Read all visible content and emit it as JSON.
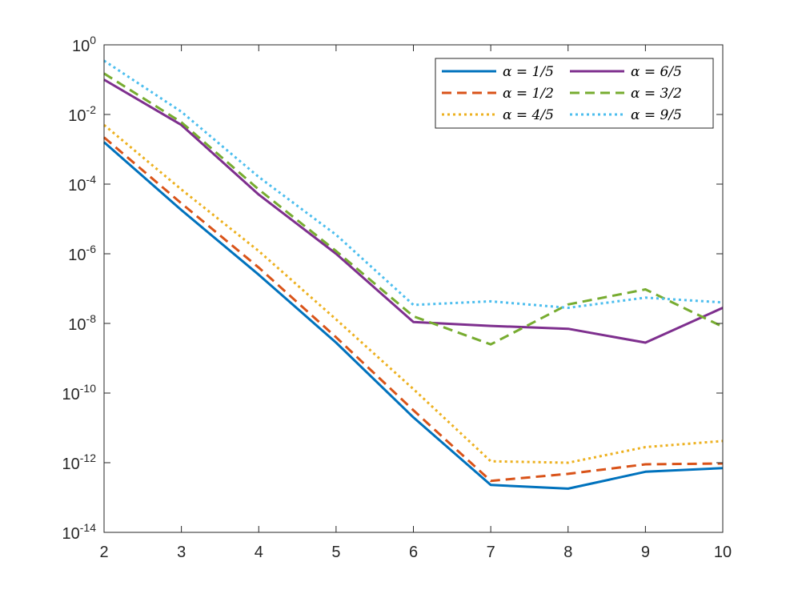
{
  "chart_data": {
    "type": "line",
    "title": "",
    "xlabel": "",
    "ylabel": "",
    "x": [
      2,
      3,
      4,
      5,
      6,
      7,
      8,
      9,
      10
    ],
    "xlim": [
      2,
      10
    ],
    "ylim": [
      1e-14,
      1
    ],
    "yscale": "log",
    "xticks": [
      "2",
      "3",
      "4",
      "5",
      "6",
      "7",
      "8",
      "9",
      "10"
    ],
    "yticks": [
      {
        "base": "10",
        "exp": "0"
      },
      {
        "base": "10",
        "exp": "-2"
      },
      {
        "base": "10",
        "exp": "-4"
      },
      {
        "base": "10",
        "exp": "-6"
      },
      {
        "base": "10",
        "exp": "-8"
      },
      {
        "base": "10",
        "exp": "-10"
      },
      {
        "base": "10",
        "exp": "-12"
      },
      {
        "base": "10",
        "exp": "-14"
      }
    ],
    "grid": false,
    "legend_position": "top-right",
    "series": [
      {
        "name": "α = 1/5",
        "color": "#0072BD",
        "style": "solid",
        "values": [
          0.0016,
          1.8e-05,
          2.5e-07,
          2.8e-09,
          2e-11,
          2.3e-13,
          1.8e-13,
          5.5e-13,
          7e-13
        ]
      },
      {
        "name": "α = 1/2",
        "color": "#D95319",
        "style": "dashed",
        "values": [
          0.0022,
          2.8e-05,
          4e-07,
          4e-09,
          3.2e-11,
          3e-13,
          4.8e-13,
          9e-13,
          9.5e-13
        ]
      },
      {
        "name": "α = 4/5",
        "color": "#EDB120",
        "style": "dotted",
        "values": [
          0.005,
          7e-05,
          1.2e-06,
          1.3e-08,
          1.3e-10,
          1.1e-12,
          1e-12,
          2.8e-12,
          4.2e-12
        ]
      },
      {
        "name": "α = 6/5",
        "color": "#7E2F8E",
        "style": "solid",
        "values": [
          0.1,
          0.005,
          5e-05,
          1e-06,
          1.1e-08,
          8.5e-09,
          7e-09,
          2.8e-09,
          2.8e-08
        ]
      },
      {
        "name": "α = 3/2",
        "color": "#77AC30",
        "style": "dashed",
        "values": [
          0.15,
          0.006,
          7e-05,
          1.2e-06,
          1.6e-08,
          2.5e-09,
          3.5e-08,
          9.5e-08,
          8e-09
        ]
      },
      {
        "name": "α = 9/5",
        "color": "#4DBEEE",
        "style": "dotted",
        "values": [
          0.35,
          0.012,
          0.00016,
          3.5e-06,
          3.4e-08,
          4.3e-08,
          2.8e-08,
          5.5e-08,
          4e-08
        ]
      }
    ]
  }
}
